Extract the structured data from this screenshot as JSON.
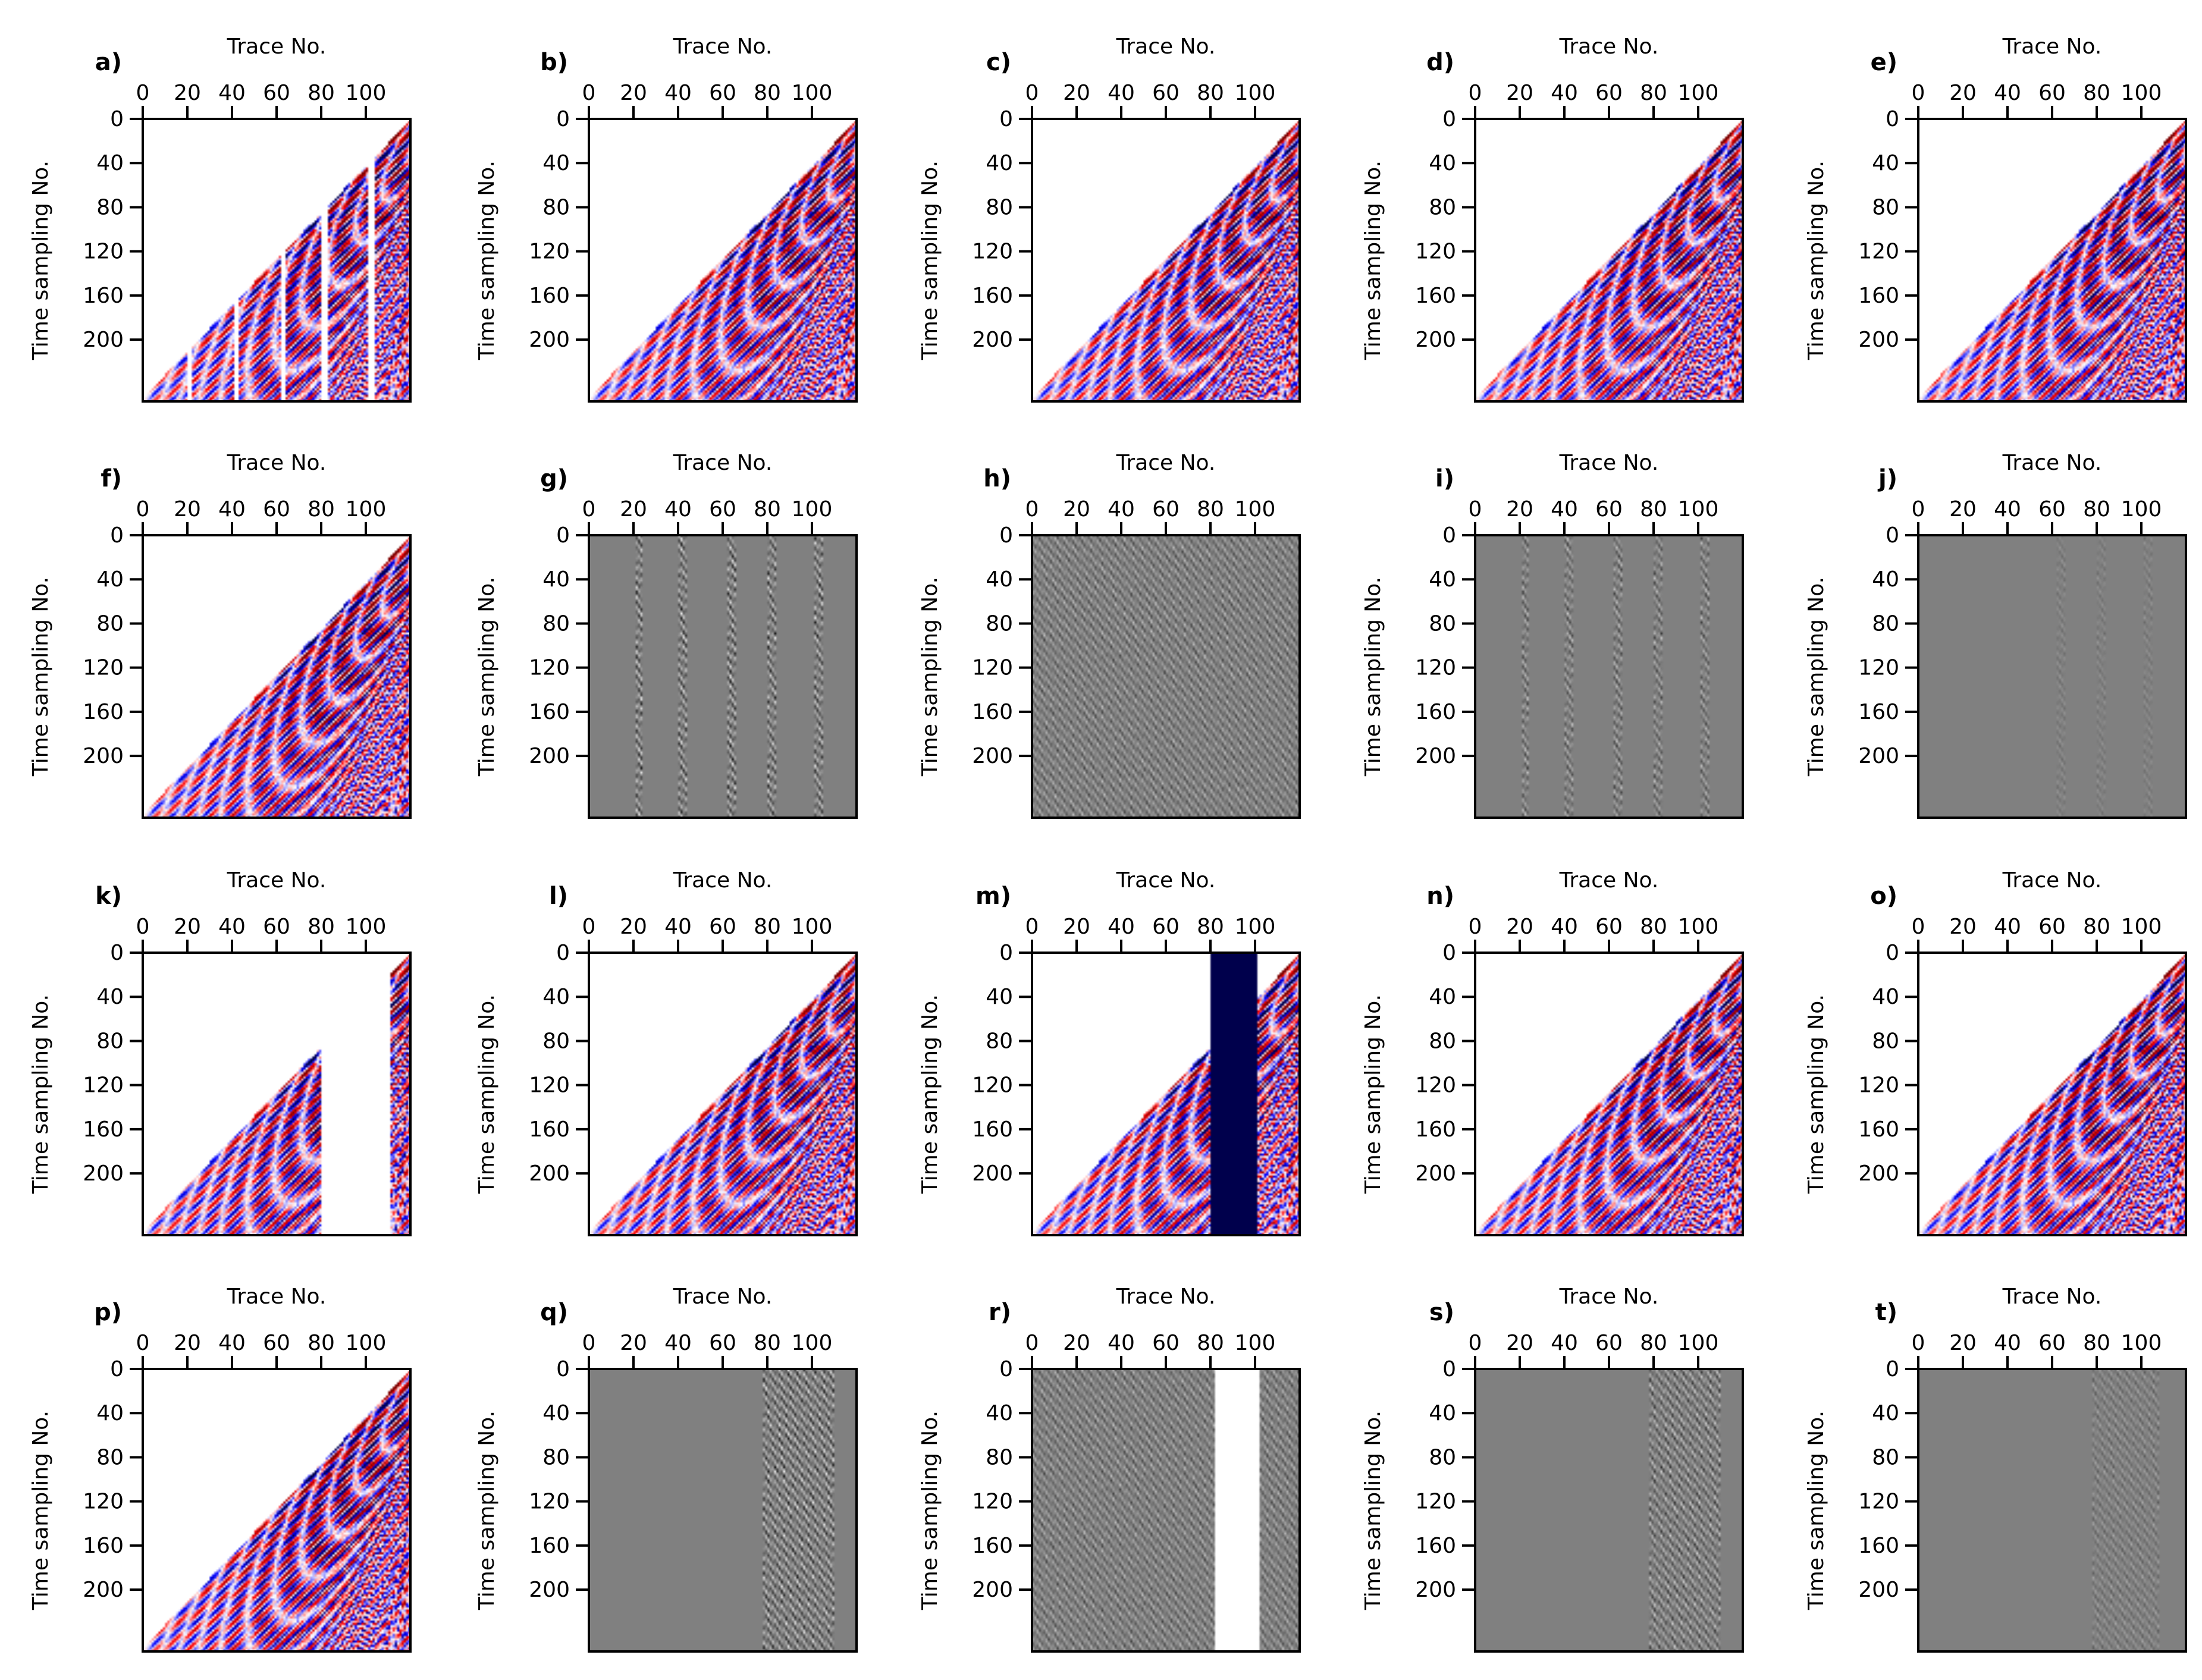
{
  "chart_data": {
    "type": "heatmap",
    "layout": {
      "rows": 4,
      "cols": 5
    },
    "common": {
      "xlabel": "Trace No.",
      "ylabel": "Time sampling No.",
      "xticks": [
        0,
        20,
        40,
        60,
        80,
        100
      ],
      "yticks": [
        0,
        40,
        80,
        120,
        160,
        200
      ],
      "xlim": [
        0,
        120
      ],
      "ylim": [
        0,
        256
      ],
      "x_axis_position": "top",
      "y_inverted": true,
      "grid": false
    },
    "colormaps": {
      "seismic": [
        "#00004c",
        "#0000ff",
        "#ffffff",
        "#ff0000",
        "#800000"
      ],
      "gray": [
        "#000000",
        "#808080",
        "#ffffff"
      ]
    },
    "panels": [
      {
        "label": "a)",
        "cmap": "seismic",
        "content": "gather",
        "missing_traces": [
          [
            20,
            22
          ],
          [
            41,
            43
          ],
          [
            62,
            64
          ],
          [
            80,
            83
          ],
          [
            101,
            104
          ]
        ]
      },
      {
        "label": "b)",
        "cmap": "seismic",
        "content": "gather",
        "missing_traces": []
      },
      {
        "label": "c)",
        "cmap": "seismic",
        "content": "gather",
        "missing_traces": []
      },
      {
        "label": "d)",
        "cmap": "seismic",
        "content": "gather",
        "missing_traces": []
      },
      {
        "label": "e)",
        "cmap": "seismic",
        "content": "gather",
        "missing_traces": []
      },
      {
        "label": "f)",
        "cmap": "seismic",
        "content": "gather",
        "missing_traces": []
      },
      {
        "label": "g)",
        "cmap": "gray",
        "content": "residual",
        "active_traces": [
          [
            21,
            24
          ],
          [
            40,
            44
          ],
          [
            62,
            66
          ],
          [
            80,
            84
          ],
          [
            101,
            105
          ]
        ],
        "amplitude": 0.9
      },
      {
        "label": "h)",
        "cmap": "gray",
        "content": "residual",
        "active_traces": [
          [
            0,
            120
          ]
        ],
        "amplitude": 0.55
      },
      {
        "label": "i)",
        "cmap": "gray",
        "content": "residual",
        "active_traces": [
          [
            21,
            24
          ],
          [
            40,
            44
          ],
          [
            62,
            66
          ],
          [
            80,
            84
          ],
          [
            101,
            105
          ]
        ],
        "amplitude": 0.6
      },
      {
        "label": "j)",
        "cmap": "gray",
        "content": "residual",
        "active_traces": [
          [
            62,
            66
          ],
          [
            80,
            84
          ],
          [
            101,
            105
          ]
        ],
        "amplitude": 0.2
      },
      {
        "label": "k)",
        "cmap": "seismic",
        "content": "gather",
        "missing_traces": [
          [
            80,
            111
          ]
        ]
      },
      {
        "label": "l)",
        "cmap": "seismic",
        "content": "gather",
        "missing_traces": []
      },
      {
        "label": "m)",
        "cmap": "seismic",
        "content": "gather",
        "missing_traces": [],
        "constant_block": [
          [
            80,
            101
          ],
          "#00004c"
        ]
      },
      {
        "label": "n)",
        "cmap": "seismic",
        "content": "gather",
        "missing_traces": []
      },
      {
        "label": "o)",
        "cmap": "seismic",
        "content": "gather",
        "missing_traces": []
      },
      {
        "label": "p)",
        "cmap": "seismic",
        "content": "gather",
        "missing_traces": []
      },
      {
        "label": "q)",
        "cmap": "gray",
        "content": "residual",
        "active_traces": [
          [
            78,
            110
          ]
        ],
        "amplitude": 0.9
      },
      {
        "label": "r)",
        "cmap": "gray",
        "content": "residual",
        "active_traces": [
          [
            0,
            120
          ]
        ],
        "amplitude": 0.55,
        "constant_block": [
          [
            82,
            102
          ],
          "#ffffff"
        ]
      },
      {
        "label": "s)",
        "cmap": "gray",
        "content": "residual",
        "active_traces": [
          [
            78,
            110
          ]
        ],
        "amplitude": 0.7
      },
      {
        "label": "t)",
        "cmap": "gray",
        "content": "residual",
        "active_traces": [
          [
            78,
            108
          ]
        ],
        "amplitude": 0.35
      }
    ]
  }
}
